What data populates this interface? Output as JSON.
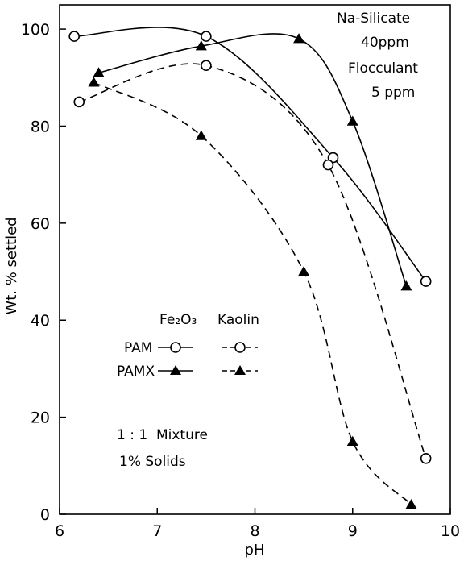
{
  "chart_data": {
    "type": "line",
    "xlabel": "pH",
    "ylabel": "Wt. % settled",
    "xlim": [
      6,
      10
    ],
    "ylim": [
      0,
      105
    ],
    "xticks": [
      "6",
      "7",
      "8",
      "9",
      "10"
    ],
    "yticks": [
      "0",
      "20",
      "40",
      "60",
      "80",
      "100"
    ],
    "grid": false,
    "series": [
      {
        "name": "Fe2O3 PAM",
        "marker": "open-circle",
        "line": "solid",
        "x": [
          6.15,
          7.5,
          8.8,
          9.75
        ],
        "y": [
          98.5,
          98.5,
          73.5,
          48
        ]
      },
      {
        "name": "Fe2O3 PAMX",
        "marker": "filled-triangle",
        "line": "solid",
        "x": [
          6.4,
          7.45,
          8.45,
          9.0,
          9.55
        ],
        "y": [
          91,
          96.5,
          98,
          81,
          47
        ]
      },
      {
        "name": "Kaolin PAM",
        "marker": "open-circle",
        "line": "dashed",
        "x": [
          6.2,
          7.5,
          8.75,
          9.75
        ],
        "y": [
          85,
          92.5,
          72,
          11.5
        ]
      },
      {
        "name": "Kaolin PAMX",
        "marker": "filled-triangle",
        "line": "dashed",
        "x": [
          6.35,
          7.45,
          8.5,
          9.0,
          9.6
        ],
        "y": [
          89,
          78,
          50,
          15,
          2
        ]
      }
    ],
    "legend": {
      "placement": "lower-left",
      "col_headers": [
        "Fe₂O₃",
        "Kaolin"
      ],
      "row_labels": [
        "PAM",
        "PAMX"
      ]
    },
    "annotations": {
      "top_right": [
        "Na-Silicate",
        "40ppm",
        "Flocculant",
        "5 ppm"
      ],
      "bottom_left": [
        "1 : 1  Mixture",
        "1% Solids"
      ]
    }
  }
}
